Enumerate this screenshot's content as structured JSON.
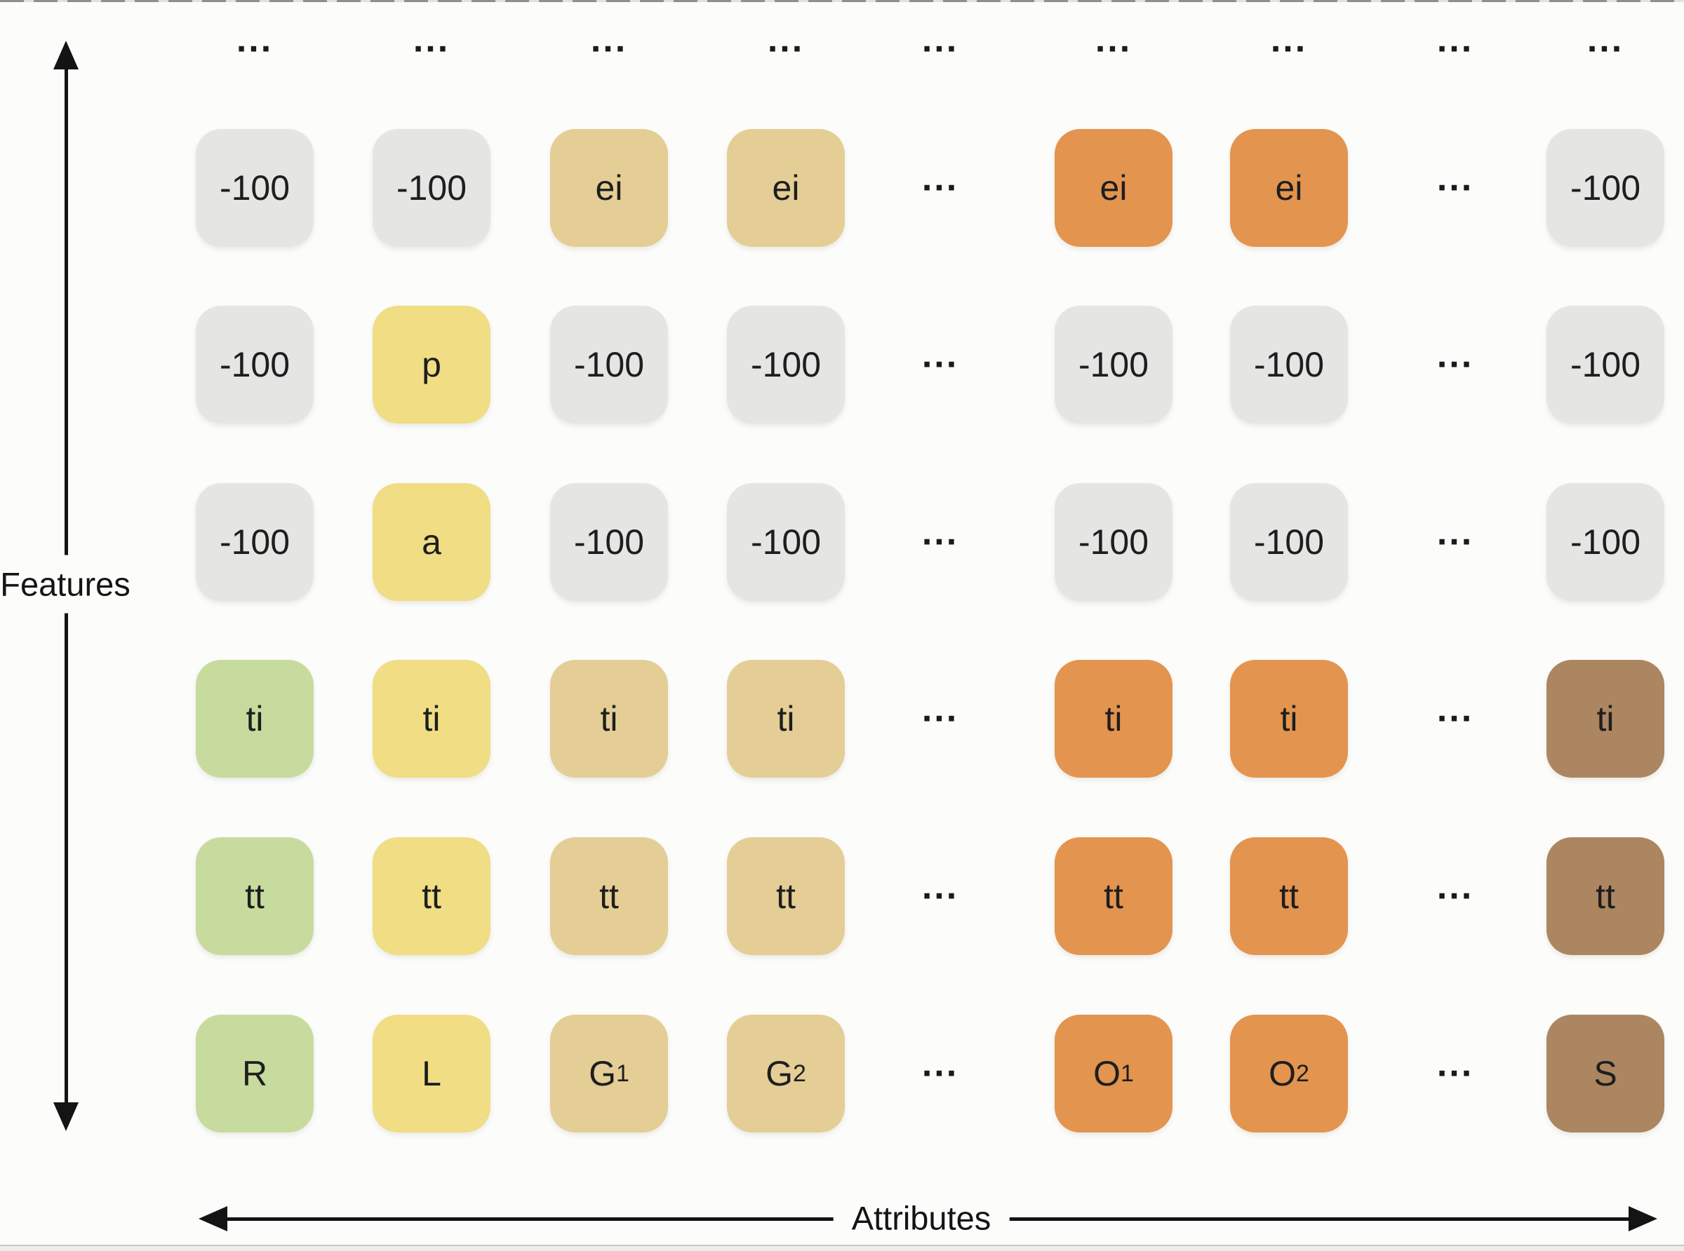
{
  "figure": {
    "type": "matrix-diagram",
    "y_axis_label": "Features",
    "x_axis_label": "Attributes",
    "ellipsis": "...",
    "palette": {
      "background": "#fcfcfb",
      "gray": "#e5e5e4",
      "green": "#c8db9e",
      "yellow": "#f0dd84",
      "tan": "#e4ce95",
      "orange": "#e3944f",
      "brown": "#ab8660",
      "text": "#1e1e1e",
      "arrow": "#141414"
    },
    "matrix": {
      "top_row": [
        "...",
        "...",
        "...",
        "...",
        "...",
        "...",
        "...",
        "...",
        "..."
      ],
      "rows": [
        {
          "cells": [
            {
              "label": "-100",
              "color": "gray"
            },
            {
              "label": "-100",
              "color": "gray"
            },
            {
              "label": "ei",
              "color": "tan"
            },
            {
              "label": "ei",
              "color": "tan"
            },
            {
              "type": "dots"
            },
            {
              "label": "ei",
              "color": "orange"
            },
            {
              "label": "ei",
              "color": "orange"
            },
            {
              "type": "dots"
            },
            {
              "label": "-100",
              "color": "gray"
            }
          ]
        },
        {
          "cells": [
            {
              "label": "-100",
              "color": "gray"
            },
            {
              "label": "p",
              "color": "yellow"
            },
            {
              "label": "-100",
              "color": "gray"
            },
            {
              "label": "-100",
              "color": "gray"
            },
            {
              "type": "dots"
            },
            {
              "label": "-100",
              "color": "gray"
            },
            {
              "label": "-100",
              "color": "gray"
            },
            {
              "type": "dots"
            },
            {
              "label": "-100",
              "color": "gray"
            }
          ]
        },
        {
          "cells": [
            {
              "label": "-100",
              "color": "gray"
            },
            {
              "label": "a",
              "color": "yellow"
            },
            {
              "label": "-100",
              "color": "gray"
            },
            {
              "label": "-100",
              "color": "gray"
            },
            {
              "type": "dots"
            },
            {
              "label": "-100",
              "color": "gray"
            },
            {
              "label": "-100",
              "color": "gray"
            },
            {
              "type": "dots"
            },
            {
              "label": "-100",
              "color": "gray"
            }
          ]
        },
        {
          "cells": [
            {
              "label": "ti",
              "color": "green"
            },
            {
              "label": "ti",
              "color": "yellow"
            },
            {
              "label": "ti",
              "color": "tan"
            },
            {
              "label": "ti",
              "color": "tan"
            },
            {
              "type": "dots"
            },
            {
              "label": "ti",
              "color": "orange"
            },
            {
              "label": "ti",
              "color": "orange"
            },
            {
              "type": "dots"
            },
            {
              "label": "ti",
              "color": "brown"
            }
          ]
        },
        {
          "cells": [
            {
              "label": "tt",
              "color": "green"
            },
            {
              "label": "tt",
              "color": "yellow"
            },
            {
              "label": "tt",
              "color": "tan"
            },
            {
              "label": "tt",
              "color": "tan"
            },
            {
              "type": "dots"
            },
            {
              "label": "tt",
              "color": "orange"
            },
            {
              "label": "tt",
              "color": "orange"
            },
            {
              "type": "dots"
            },
            {
              "label": "tt",
              "color": "brown"
            }
          ]
        },
        {
          "cells": [
            {
              "label": "R",
              "color": "green"
            },
            {
              "label": "L",
              "color": "yellow"
            },
            {
              "label": "G",
              "sub": "1",
              "color": "tan"
            },
            {
              "label": "G",
              "sub": "2",
              "color": "tan"
            },
            {
              "type": "dots"
            },
            {
              "label": "O",
              "sub": "1",
              "color": "orange"
            },
            {
              "label": "O",
              "sub": "2",
              "color": "orange"
            },
            {
              "type": "dots"
            },
            {
              "label": "S",
              "color": "brown"
            }
          ]
        }
      ]
    }
  }
}
